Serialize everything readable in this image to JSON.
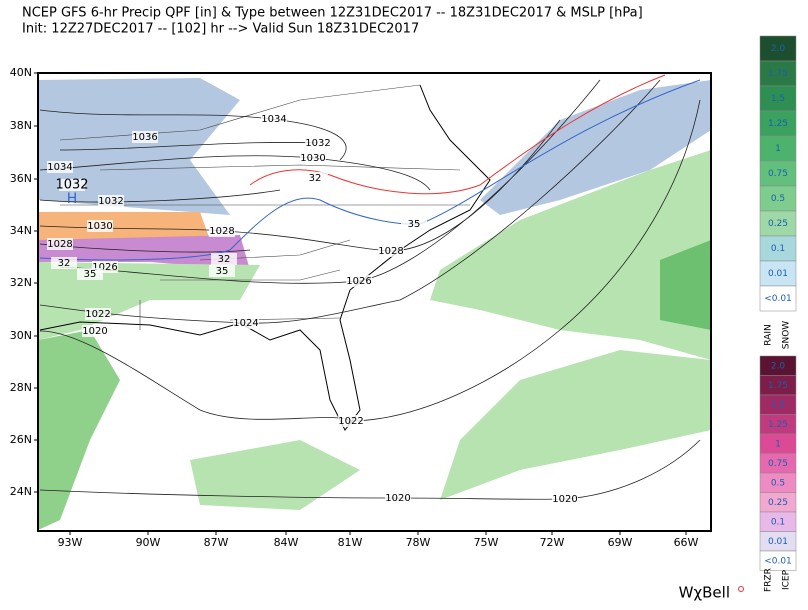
{
  "header": {
    "title_line1": "NCEP GFS 6-hr Precip QPF [in] & Type between 12Z31DEC2017 -- 18Z31DEC2017 & MSLP [hPa]",
    "title_line2": "Init: 12Z27DEC2017 -- [102] hr --> Valid Sun 18Z31DEC2017"
  },
  "map": {
    "lat_labels": [
      "40N",
      "38N",
      "36N",
      "34N",
      "32N",
      "30N",
      "28N",
      "26N",
      "24N"
    ],
    "lon_labels": [
      "93W",
      "90W",
      "87W",
      "84W",
      "81W",
      "78W",
      "75W",
      "72W",
      "69W",
      "66W"
    ],
    "high_label": "H",
    "isobar_labels": [
      "1036",
      "1034",
      "1032",
      "1030",
      "1034",
      "1032",
      "1032",
      "1030",
      "1028",
      "1028",
      "1026",
      "1028",
      "1026",
      "1022",
      "1020",
      "1024",
      "1022",
      "1020",
      "1020",
      "35",
      "32",
      "32",
      "35",
      "32",
      "35"
    ]
  },
  "legend_rain": {
    "labels": [
      "2.0",
      "1.75",
      "1.5",
      "1.25",
      "1",
      "0.75",
      "0.5",
      "0.25",
      "0.1",
      "0.01",
      "<0.01"
    ],
    "type_labels": [
      "RAIN",
      "SNOW"
    ]
  },
  "legend_ice": {
    "labels": [
      "2.0",
      "1.75",
      "1.5",
      "1.25",
      "1",
      "0.75",
      "0.5",
      "0.25",
      "0.1",
      "0.01",
      "<0.01"
    ],
    "type_labels": [
      "FRZR",
      "ICEP"
    ]
  },
  "brand": "WχBell"
}
